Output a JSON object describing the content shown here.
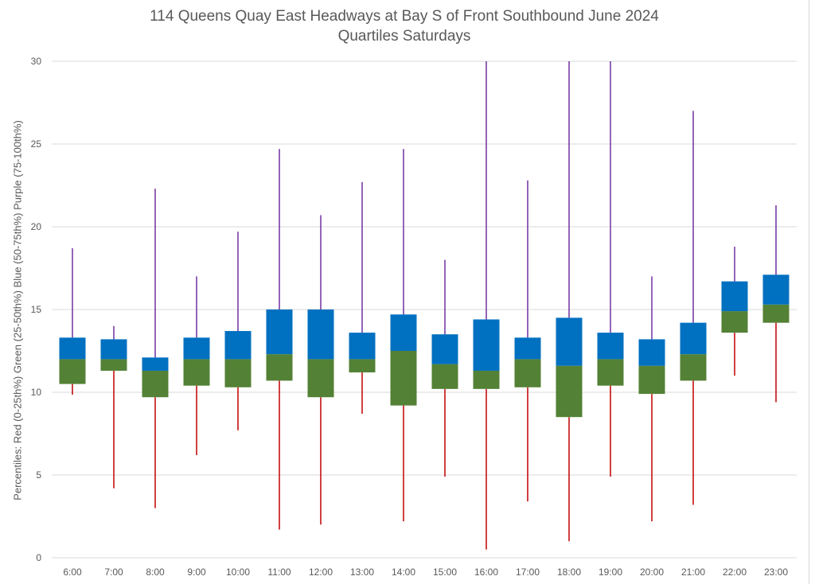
{
  "chart_data": {
    "type": "box",
    "title": "114 Queens Quay East Headways at Bay S of Front Southbound June 2024",
    "subtitle": "Quartiles Saturdays",
    "xlabel": "",
    "ylabel": "Percentiles:  Red (0-25th%)  Green (25-50th%)  Blue (50-75th%)  Purple (75-100th%)",
    "ylim": [
      0,
      30
    ],
    "yticks": [
      0,
      5,
      10,
      15,
      20,
      25,
      30
    ],
    "grid": true,
    "colors": {
      "lower_whisker": "#c00000",
      "lower_box": "#538135",
      "upper_box": "#0070c0",
      "upper_whisker": "#7030a0"
    },
    "categories": [
      "6:00",
      "7:00",
      "8:00",
      "9:00",
      "10:00",
      "11:00",
      "12:00",
      "13:00",
      "14:00",
      "15:00",
      "16:00",
      "17:00",
      "18:00",
      "19:00",
      "20:00",
      "21:00",
      "22:00",
      "23:00"
    ],
    "min": [
      9.85,
      4.2,
      3.0,
      6.2,
      7.7,
      1.7,
      2.0,
      8.7,
      2.2,
      4.9,
      0.5,
      3.4,
      1.0,
      4.9,
      2.2,
      3.2,
      11.0,
      9.4
    ],
    "q1": [
      10.5,
      11.3,
      9.7,
      10.4,
      10.3,
      10.7,
      9.7,
      11.2,
      9.2,
      10.2,
      10.2,
      10.3,
      8.5,
      10.4,
      9.9,
      10.7,
      13.6,
      14.2
    ],
    "median": [
      12.0,
      12.0,
      11.3,
      12.0,
      12.0,
      12.3,
      12.0,
      12.0,
      12.5,
      11.7,
      11.3,
      12.0,
      11.6,
      12.0,
      11.6,
      12.3,
      14.9,
      15.3
    ],
    "q3": [
      13.3,
      13.2,
      12.1,
      13.3,
      13.7,
      15.0,
      15.0,
      13.6,
      14.7,
      13.5,
      14.4,
      13.3,
      14.5,
      13.6,
      13.2,
      14.2,
      16.7,
      17.1
    ],
    "max": [
      18.7,
      14.0,
      22.3,
      17.0,
      19.7,
      24.7,
      20.7,
      22.7,
      24.7,
      18.0,
      30.0,
      22.8,
      30.0,
      30.0,
      17.0,
      27.0,
      18.8,
      21.3
    ]
  }
}
